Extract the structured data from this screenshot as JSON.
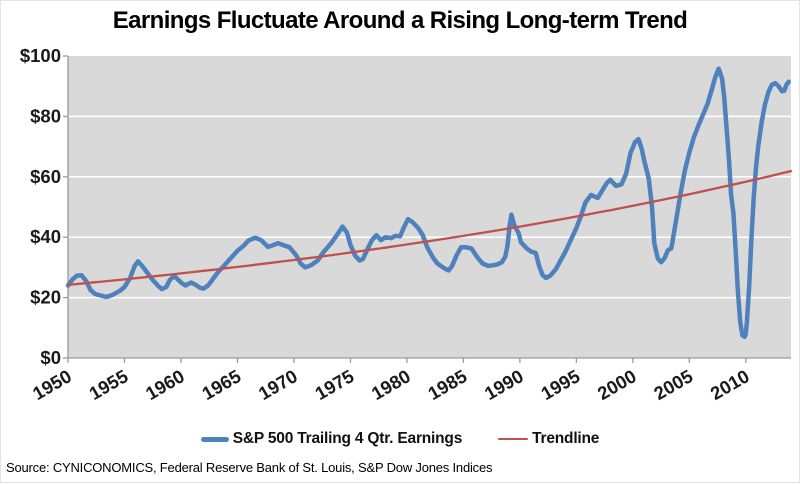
{
  "title": "Earnings Fluctuate Around a Rising Long-term Trend",
  "source": "Source: CYNICONOMICS, Federal Reserve Bank of St. Louis, S&P Dow Jones Indices",
  "legend": [
    {
      "label": "S&P 500 Trailing 4 Qtr. Earnings",
      "color": "#4F81BD"
    },
    {
      "label": "Trendline",
      "color": "#C0504D"
    }
  ],
  "colors": {
    "earnings_line": "#4F81BD",
    "trendline": "#C0504D",
    "plot_background": "#D9D9D9",
    "gridline": "#FFFFFF",
    "axis": "#9A9A9A",
    "tick_label": "#1a1a1a"
  },
  "chart_data": {
    "type": "line",
    "title": "Earnings Fluctuate Around a Rising Long-term Trend",
    "xlabel": "",
    "ylabel": "",
    "legend_position": "bottom",
    "grid": "horizontal-white",
    "plot_bg": "#D9D9D9",
    "x_axis": {
      "min": 1950,
      "max": 2014,
      "ticks": [
        1950,
        1955,
        1960,
        1965,
        1970,
        1975,
        1980,
        1985,
        1990,
        1995,
        2000,
        2005,
        2010
      ],
      "label_rotation_deg": -30
    },
    "y_axis": {
      "min": 0,
      "max": 100,
      "tick_values": [
        0,
        20,
        40,
        60,
        80,
        100
      ],
      "tick_labels": [
        "$0",
        "$20",
        "$40",
        "$60",
        "$80",
        "$100"
      ]
    },
    "series": [
      {
        "name": "S&P 500 Trailing 4 Qtr. Earnings",
        "color": "#4F81BD",
        "stroke_width": 4.5,
        "points": [
          [
            1950.0,
            24.0
          ],
          [
            1950.4,
            26.0
          ],
          [
            1950.8,
            27.3
          ],
          [
            1951.2,
            27.4
          ],
          [
            1951.6,
            25.5
          ],
          [
            1952.0,
            22.5
          ],
          [
            1952.4,
            21.2
          ],
          [
            1952.9,
            20.7
          ],
          [
            1953.4,
            20.2
          ],
          [
            1954.0,
            21.0
          ],
          [
            1954.6,
            22.3
          ],
          [
            1955.0,
            23.5
          ],
          [
            1955.5,
            26.5
          ],
          [
            1955.9,
            30.5
          ],
          [
            1956.2,
            32.0
          ],
          [
            1956.6,
            30.3
          ],
          [
            1957.0,
            28.3
          ],
          [
            1957.4,
            26.3
          ],
          [
            1958.0,
            23.8
          ],
          [
            1958.3,
            22.8
          ],
          [
            1958.7,
            23.5
          ],
          [
            1959.0,
            25.8
          ],
          [
            1959.4,
            27.2
          ],
          [
            1960.0,
            25.0
          ],
          [
            1960.4,
            24.0
          ],
          [
            1960.9,
            25.0
          ],
          [
            1961.3,
            24.2
          ],
          [
            1961.7,
            23.2
          ],
          [
            1962.0,
            23.0
          ],
          [
            1962.4,
            24.0
          ],
          [
            1962.8,
            26.0
          ],
          [
            1963.3,
            28.5
          ],
          [
            1963.8,
            30.5
          ],
          [
            1964.4,
            33.0
          ],
          [
            1965.0,
            35.5
          ],
          [
            1965.5,
            37.0
          ],
          [
            1966.0,
            39.0
          ],
          [
            1966.6,
            39.8
          ],
          [
            1967.1,
            39.0
          ],
          [
            1967.7,
            36.8
          ],
          [
            1968.1,
            37.3
          ],
          [
            1968.6,
            38.0
          ],
          [
            1969.1,
            37.3
          ],
          [
            1969.6,
            36.7
          ],
          [
            1970.2,
            34.0
          ],
          [
            1970.6,
            31.3
          ],
          [
            1971.0,
            30.0
          ],
          [
            1971.5,
            30.7
          ],
          [
            1972.1,
            32.3
          ],
          [
            1972.6,
            35.0
          ],
          [
            1973.3,
            38.0
          ],
          [
            1973.8,
            40.7
          ],
          [
            1974.3,
            43.5
          ],
          [
            1974.7,
            41.5
          ],
          [
            1975.0,
            37.5
          ],
          [
            1975.4,
            34.0
          ],
          [
            1975.8,
            32.3
          ],
          [
            1976.1,
            32.7
          ],
          [
            1976.5,
            36.0
          ],
          [
            1976.9,
            39.0
          ],
          [
            1977.3,
            40.7
          ],
          [
            1977.7,
            39.0
          ],
          [
            1978.1,
            40.0
          ],
          [
            1978.6,
            39.7
          ],
          [
            1979.0,
            40.5
          ],
          [
            1979.4,
            40.3
          ],
          [
            1979.7,
            43.0
          ],
          [
            1980.1,
            46.0
          ],
          [
            1980.5,
            45.0
          ],
          [
            1981.0,
            43.0
          ],
          [
            1981.4,
            40.7
          ],
          [
            1981.8,
            36.7
          ],
          [
            1982.3,
            33.3
          ],
          [
            1982.7,
            31.3
          ],
          [
            1983.3,
            29.7
          ],
          [
            1983.7,
            29.0
          ],
          [
            1984.0,
            30.5
          ],
          [
            1984.4,
            34.0
          ],
          [
            1984.8,
            36.7
          ],
          [
            1985.2,
            36.7
          ],
          [
            1985.7,
            36.3
          ],
          [
            1986.3,
            33.0
          ],
          [
            1986.7,
            31.3
          ],
          [
            1987.2,
            30.5
          ],
          [
            1987.6,
            30.7
          ],
          [
            1988.0,
            31.0
          ],
          [
            1988.4,
            31.7
          ],
          [
            1988.7,
            33.5
          ],
          [
            1988.9,
            37.0
          ],
          [
            1989.1,
            44.0
          ],
          [
            1989.25,
            47.5
          ],
          [
            1989.5,
            44.0
          ],
          [
            1989.9,
            41.3
          ],
          [
            1990.1,
            38.3
          ],
          [
            1990.6,
            36.3
          ],
          [
            1991.0,
            35.2
          ],
          [
            1991.4,
            34.8
          ],
          [
            1991.7,
            30.5
          ],
          [
            1992.0,
            27.5
          ],
          [
            1992.3,
            26.5
          ],
          [
            1992.7,
            27.3
          ],
          [
            1993.2,
            29.5
          ],
          [
            1993.6,
            32.3
          ],
          [
            1994.0,
            35.0
          ],
          [
            1994.5,
            39.0
          ],
          [
            1995.0,
            43.0
          ],
          [
            1995.4,
            47.0
          ],
          [
            1995.8,
            51.5
          ],
          [
            1996.3,
            54.0
          ],
          [
            1996.9,
            53.0
          ],
          [
            1997.3,
            55.5
          ],
          [
            1997.7,
            58.0
          ],
          [
            1998.0,
            59.0
          ],
          [
            1998.5,
            57.0
          ],
          [
            1999.0,
            57.5
          ],
          [
            1999.4,
            61.0
          ],
          [
            1999.8,
            68.0
          ],
          [
            2000.2,
            71.5
          ],
          [
            2000.5,
            72.5
          ],
          [
            2000.8,
            69.0
          ],
          [
            2001.0,
            65.5
          ],
          [
            2001.4,
            59.5
          ],
          [
            2001.7,
            50.0
          ],
          [
            2001.9,
            38.0
          ],
          [
            2002.2,
            33.0
          ],
          [
            2002.5,
            31.7
          ],
          [
            2002.8,
            33.0
          ],
          [
            2003.1,
            35.7
          ],
          [
            2003.4,
            36.3
          ],
          [
            2003.8,
            45.0
          ],
          [
            2004.2,
            54.0
          ],
          [
            2004.6,
            62.0
          ],
          [
            2005.0,
            68.0
          ],
          [
            2005.4,
            73.0
          ],
          [
            2005.8,
            77.0
          ],
          [
            2006.2,
            80.5
          ],
          [
            2006.6,
            84.0
          ],
          [
            2007.0,
            89.0
          ],
          [
            2007.3,
            93.0
          ],
          [
            2007.6,
            95.8
          ],
          [
            2007.9,
            92.5
          ],
          [
            2008.1,
            86.0
          ],
          [
            2008.3,
            76.0
          ],
          [
            2008.5,
            66.0
          ],
          [
            2008.7,
            54.0
          ],
          [
            2008.9,
            48.0
          ],
          [
            2009.1,
            36.0
          ],
          [
            2009.3,
            22.0
          ],
          [
            2009.5,
            12.0
          ],
          [
            2009.7,
            7.5
          ],
          [
            2009.9,
            7.0
          ],
          [
            2010.0,
            8.0
          ],
          [
            2010.1,
            12.0
          ],
          [
            2010.3,
            24.0
          ],
          [
            2010.5,
            40.0
          ],
          [
            2010.7,
            53.0
          ],
          [
            2010.9,
            63.0
          ],
          [
            2011.1,
            70.0
          ],
          [
            2011.4,
            78.0
          ],
          [
            2011.7,
            84.0
          ],
          [
            2012.0,
            88.0
          ],
          [
            2012.3,
            90.5
          ],
          [
            2012.6,
            91.0
          ],
          [
            2012.9,
            90.0
          ],
          [
            2013.2,
            88.3
          ],
          [
            2013.4,
            88.5
          ],
          [
            2013.6,
            90.5
          ],
          [
            2013.8,
            91.5
          ]
        ]
      },
      {
        "name": "Trendline",
        "color": "#C0504D",
        "stroke_width": 2.3,
        "trend": {
          "model": "exponential",
          "start": [
            1950,
            24.2
          ],
          "end": [
            2014,
            61.9
          ]
        }
      }
    ]
  }
}
